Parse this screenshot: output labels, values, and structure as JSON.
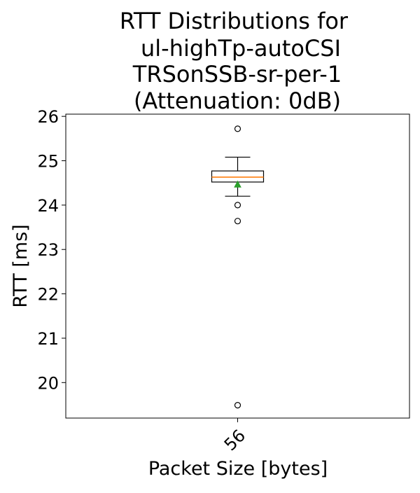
{
  "chart_data": {
    "type": "box",
    "title": [
      "RTT Distributions for",
      "ul-highTp-autoCSI",
      "TRSonSSB-sr-per-1",
      "(Attenuation: 0dB)"
    ],
    "xlabel": "Packet Size [bytes]",
    "ylabel": "RTT [ms]",
    "ylim": [
      19.2,
      26.05
    ],
    "yticks": [
      20,
      21,
      22,
      23,
      24,
      25,
      26
    ],
    "categories": [
      "56"
    ],
    "boxes": [
      {
        "category": "56",
        "whisker_low": 24.2,
        "q1": 24.52,
        "median": 24.63,
        "q3": 24.77,
        "whisker_high": 25.08,
        "mean": 24.46,
        "outliers": [
          25.72,
          24.0,
          23.64,
          19.49
        ]
      }
    ],
    "colors": {
      "box": "#000000",
      "median": "#ff7f0e",
      "mean": "#2ca02c",
      "outlier": "#000000"
    },
    "grid": false,
    "legend": "none"
  }
}
